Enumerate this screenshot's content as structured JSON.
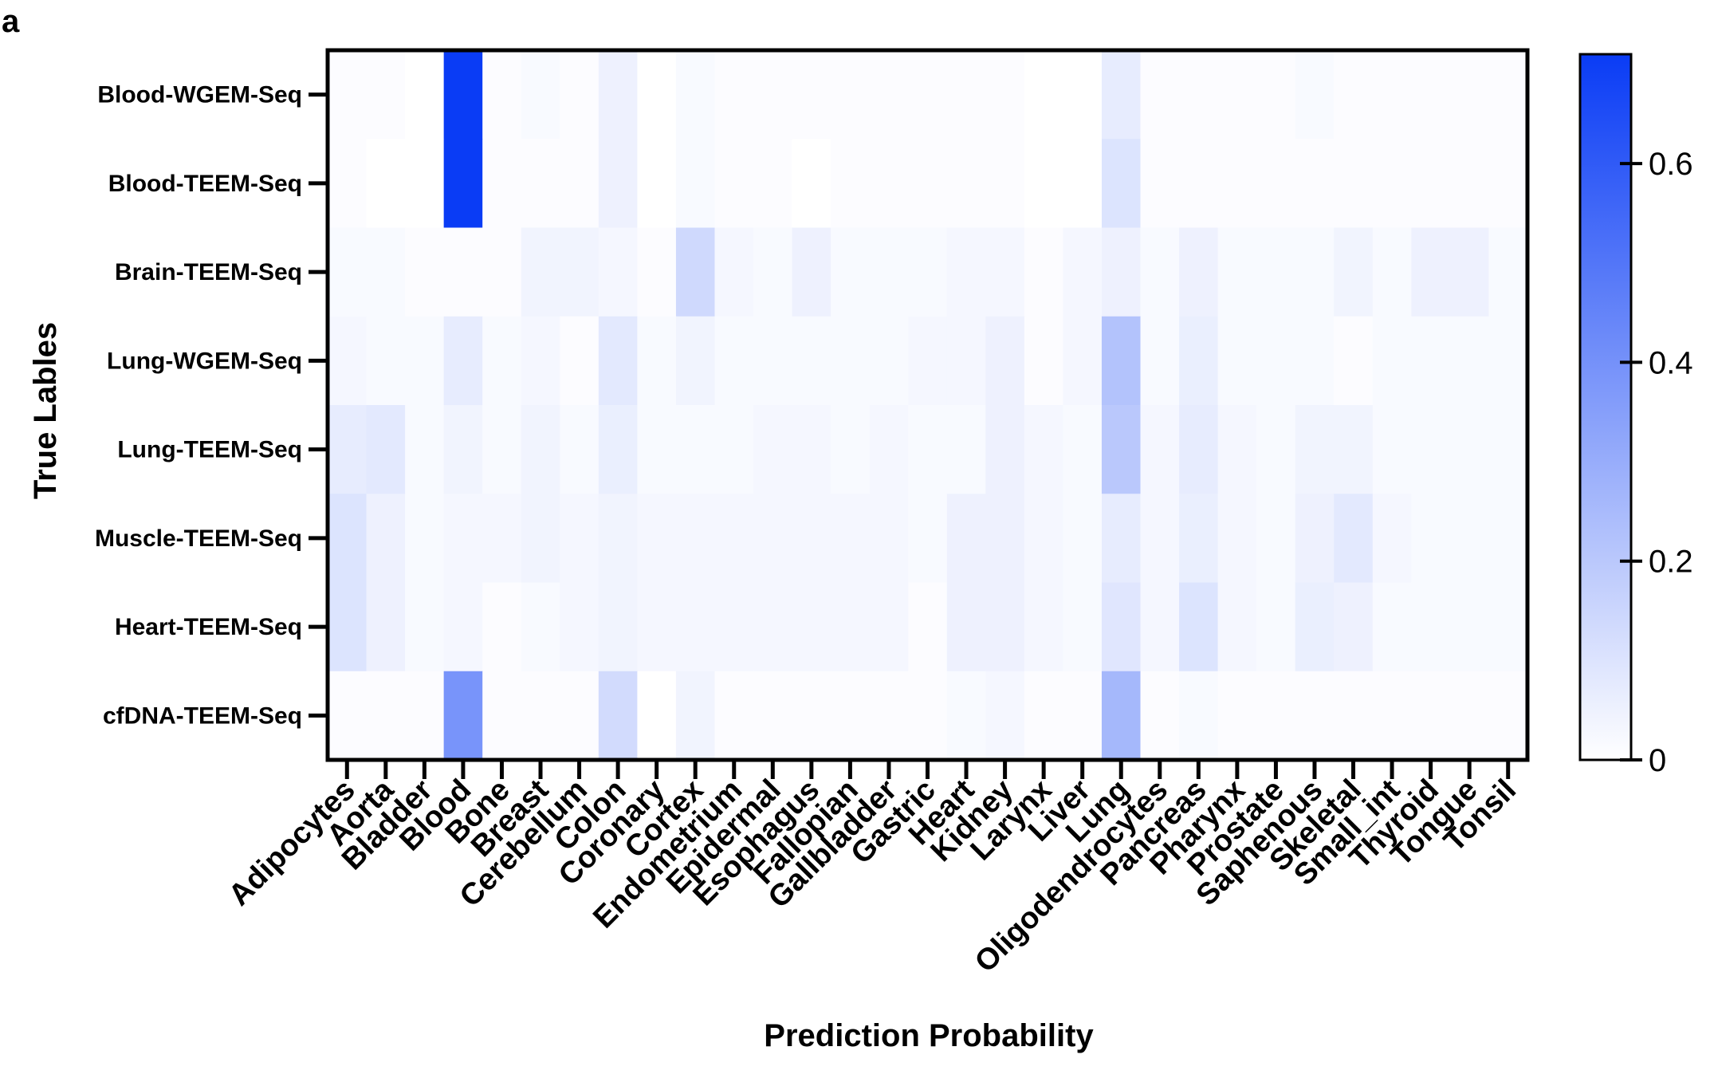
{
  "panel_label": "a",
  "chart_data": {
    "type": "heatmap",
    "xlabel": "Prediction Probability",
    "ylabel": "True Lables",
    "rows": [
      "Blood-WGEM-Seq",
      "Blood-TEEM-Seq",
      "Brain-TEEM-Seq",
      "Lung-WGEM-Seq",
      "Lung-TEEM-Seq",
      "Muscle-TEEM-Seq",
      "Heart-TEEM-Seq",
      "cfDNA-TEEM-Seq"
    ],
    "columns": [
      "Adipocytes",
      "Aorta",
      "Bladder",
      "Blood",
      "Bone",
      "Breast",
      "Cerebellum",
      "Colon",
      "Coronary",
      "Cortex",
      "Endometrium",
      "Epidermal",
      "Esophagus",
      "Fallopian",
      "Gallbladder",
      "Gastric",
      "Heart",
      "Kidney",
      "Larynx",
      "Liver",
      "Lung",
      "Oligodendrocytes",
      "Pancreas",
      "Pharynx",
      "Prostate",
      "Saphenous",
      "Skeletal",
      "Small_int",
      "Thyroid",
      "Tongue",
      "Tonsil"
    ],
    "values": [
      [
        0.01,
        0.01,
        0.0,
        0.71,
        0.01,
        0.02,
        0.01,
        0.05,
        0.0,
        0.02,
        0.01,
        0.01,
        0.01,
        0.01,
        0.01,
        0.01,
        0.01,
        0.01,
        0.0,
        0.0,
        0.07,
        0.01,
        0.01,
        0.01,
        0.01,
        0.02,
        0.01,
        0.01,
        0.01,
        0.01,
        0.01
      ],
      [
        0.01,
        0.0,
        0.0,
        0.71,
        0.01,
        0.01,
        0.01,
        0.05,
        0.0,
        0.02,
        0.01,
        0.01,
        0.0,
        0.01,
        0.01,
        0.01,
        0.01,
        0.01,
        0.0,
        0.0,
        0.1,
        0.01,
        0.01,
        0.01,
        0.01,
        0.01,
        0.01,
        0.01,
        0.01,
        0.01,
        0.01
      ],
      [
        0.02,
        0.02,
        0.01,
        0.01,
        0.01,
        0.04,
        0.04,
        0.03,
        0.01,
        0.14,
        0.03,
        0.02,
        0.05,
        0.02,
        0.02,
        0.02,
        0.03,
        0.03,
        0.01,
        0.03,
        0.05,
        0.02,
        0.05,
        0.02,
        0.02,
        0.02,
        0.04,
        0.02,
        0.05,
        0.05,
        0.02
      ],
      [
        0.03,
        0.02,
        0.02,
        0.07,
        0.02,
        0.03,
        0.01,
        0.08,
        0.02,
        0.04,
        0.02,
        0.02,
        0.02,
        0.02,
        0.02,
        0.03,
        0.03,
        0.05,
        0.01,
        0.03,
        0.22,
        0.02,
        0.06,
        0.02,
        0.02,
        0.02,
        0.01,
        0.02,
        0.02,
        0.02,
        0.02
      ],
      [
        0.07,
        0.08,
        0.02,
        0.04,
        0.02,
        0.04,
        0.02,
        0.06,
        0.02,
        0.02,
        0.02,
        0.03,
        0.03,
        0.02,
        0.03,
        0.02,
        0.02,
        0.05,
        0.03,
        0.02,
        0.2,
        0.03,
        0.07,
        0.03,
        0.02,
        0.04,
        0.04,
        0.02,
        0.02,
        0.02,
        0.02
      ],
      [
        0.1,
        0.05,
        0.02,
        0.03,
        0.03,
        0.04,
        0.03,
        0.04,
        0.03,
        0.03,
        0.03,
        0.03,
        0.03,
        0.03,
        0.03,
        0.02,
        0.05,
        0.05,
        0.03,
        0.02,
        0.07,
        0.03,
        0.06,
        0.03,
        0.02,
        0.05,
        0.08,
        0.03,
        0.02,
        0.02,
        0.02
      ],
      [
        0.1,
        0.05,
        0.02,
        0.03,
        0.01,
        0.02,
        0.03,
        0.04,
        0.03,
        0.03,
        0.03,
        0.03,
        0.03,
        0.03,
        0.03,
        0.01,
        0.05,
        0.05,
        0.03,
        0.02,
        0.09,
        0.03,
        0.1,
        0.03,
        0.02,
        0.06,
        0.05,
        0.02,
        0.02,
        0.02,
        0.02
      ],
      [
        0.01,
        0.01,
        0.01,
        0.39,
        0.01,
        0.01,
        0.01,
        0.13,
        0.0,
        0.04,
        0.01,
        0.01,
        0.01,
        0.01,
        0.01,
        0.01,
        0.02,
        0.03,
        0.01,
        0.01,
        0.26,
        0.01,
        0.02,
        0.01,
        0.01,
        0.01,
        0.01,
        0.01,
        0.01,
        0.01,
        0.01
      ]
    ],
    "colorbar": {
      "range": [
        0,
        0.71
      ],
      "ticks": [
        "0",
        "0.2",
        "0.4",
        "0.6"
      ],
      "tick_values": [
        0,
        0.2,
        0.4,
        0.6
      ]
    },
    "colors": {
      "low": "#ffffff",
      "high": "#0a3cf5"
    }
  }
}
